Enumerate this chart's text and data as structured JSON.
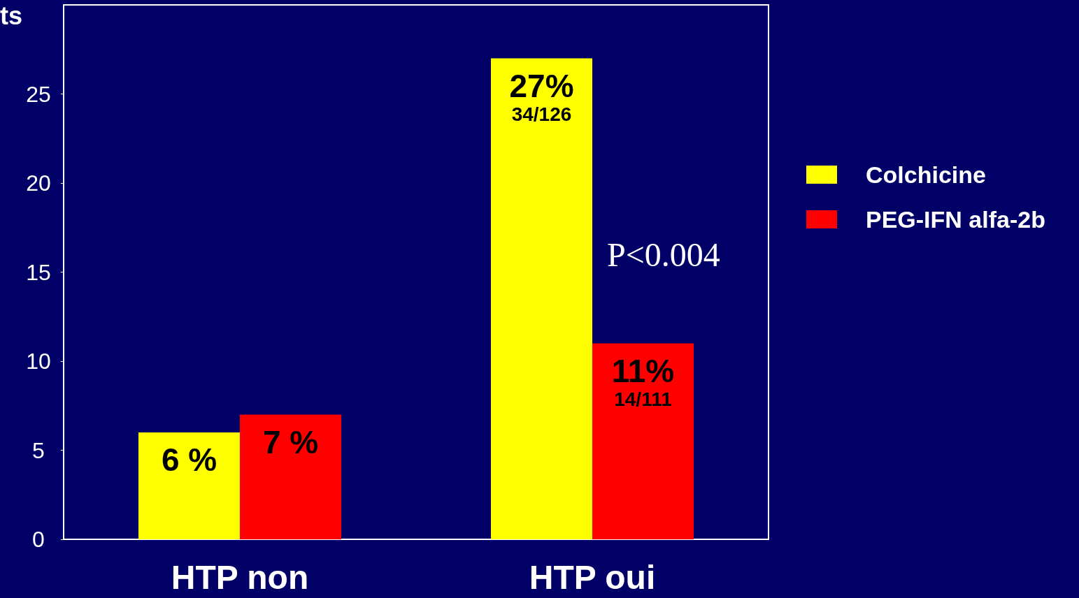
{
  "chart_data": {
    "type": "bar",
    "ylabel": "ts",
    "categories": [
      "HTP non",
      "HTP oui"
    ],
    "series": [
      {
        "name": "Colchicine",
        "color": "#ffff00",
        "values": [
          6,
          27
        ],
        "value_labels": [
          "6 %",
          "27%\n34/126"
        ]
      },
      {
        "name": "PEG-IFN alfa-2b",
        "color": "#ff0000",
        "values": [
          7,
          11
        ],
        "value_labels": [
          "7 %",
          "11%\n14/111"
        ]
      }
    ],
    "ylim": [
      0,
      30
    ],
    "yticks": [
      0,
      5,
      10,
      15,
      20,
      25
    ],
    "grid": false,
    "legend": "right",
    "annotations": [
      "P<0.004"
    ]
  }
}
